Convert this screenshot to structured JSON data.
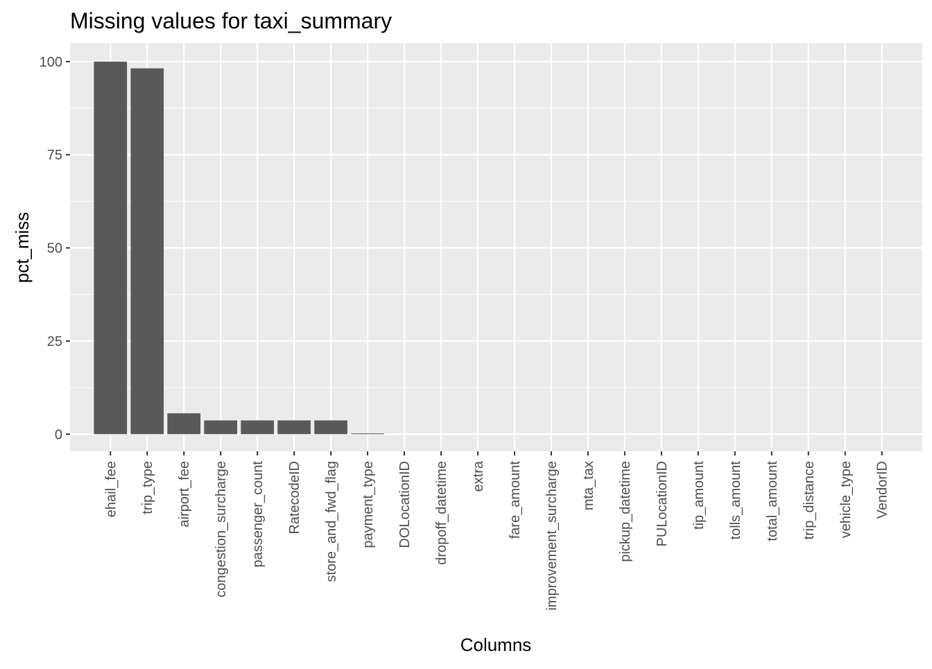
{
  "chart_data": {
    "type": "bar",
    "title": "Missing values for taxi_summary",
    "xlabel": "Columns",
    "ylabel": "pct_miss",
    "categories": [
      "ehail_fee",
      "trip_type",
      "airport_fee",
      "congestion_surcharge",
      "passenger_count",
      "RatecodeID",
      "store_and_fwd_flag",
      "payment_type",
      "DOLocationID",
      "dropoff_datetime",
      "extra",
      "fare_amount",
      "improvement_surcharge",
      "mta_tax",
      "pickup_datetime",
      "PULocationID",
      "tip_amount",
      "tolls_amount",
      "total_amount",
      "trip_distance",
      "vehicle_type",
      "VendorID"
    ],
    "values": [
      100,
      98.2,
      5.6,
      3.7,
      3.7,
      3.7,
      3.7,
      0.2,
      0,
      0,
      0,
      0,
      0,
      0,
      0,
      0,
      0,
      0,
      0,
      0,
      0,
      0
    ],
    "ylim": [
      -4.6,
      105
    ],
    "yticks": [
      0,
      25,
      50,
      75,
      100
    ],
    "ytick_labels": [
      "0",
      "25",
      "50",
      "75",
      "100"
    ],
    "grid": true,
    "panel_background": "#ebebeb",
    "bar_color": "#595959",
    "grid_major_color": "#ffffff"
  }
}
